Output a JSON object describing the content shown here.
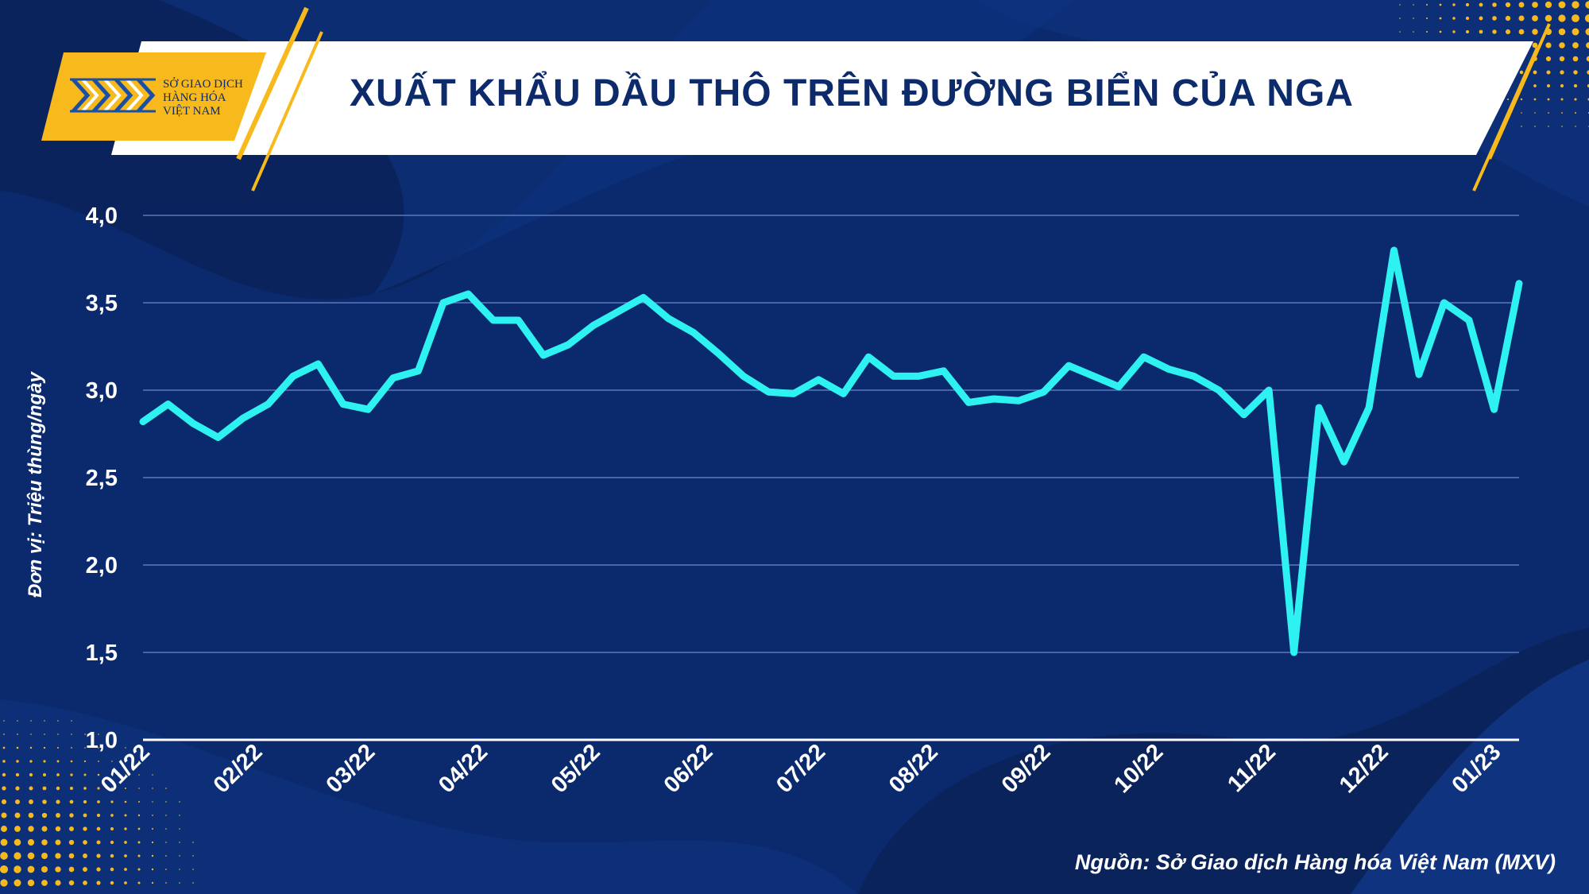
{
  "header": {
    "logo_lines": [
      "SỞ GIAO DỊCH",
      "HÀNG HÓA",
      "VIỆT NAM"
    ],
    "title": "XUẤT KHẨU DẦU THÔ TRÊN ĐƯỜNG BIỂN CỦA NGA"
  },
  "footer": {
    "source": "Nguồn: Sở Giao dịch Hàng hóa Việt Nam (MXV)"
  },
  "colors": {
    "background": "#0b2a6e",
    "line": "#2ef2f2",
    "accent": "#f7b91b",
    "title_text": "#0d2a6b"
  },
  "chart_data": {
    "type": "line",
    "title": "XUẤT KHẨU DẦU THÔ TRÊN ĐƯỜNG BIỂN CỦA NGA",
    "xlabel": "",
    "ylabel": "Đơn vị: Triệu thùng/ngày",
    "ylim": [
      1.0,
      4.0
    ],
    "yticks": [
      "4,0",
      "3,5",
      "3,0",
      "2,5",
      "2,0",
      "1,5",
      "1,0"
    ],
    "ytick_values": [
      4.0,
      3.5,
      3.0,
      2.5,
      2.0,
      1.5,
      1.0
    ],
    "grid": true,
    "legend": "none",
    "x_tick_labels": [
      "01/22",
      "02/22",
      "03/22",
      "04/22",
      "05/22",
      "06/22",
      "07/22",
      "08/22",
      "09/22",
      "10/22",
      "11/22",
      "12/22",
      "01/23"
    ],
    "x_tick_index": [
      0,
      4.5,
      9,
      13.5,
      18,
      22.5,
      27,
      31.5,
      36,
      40.5,
      45,
      49.5,
      54
    ],
    "series": [
      {
        "values": [
          2.82,
          2.92,
          2.81,
          2.73,
          2.84,
          2.92,
          3.08,
          3.15,
          2.92,
          2.89,
          3.07,
          3.11,
          3.5,
          3.55,
          3.4,
          3.4,
          3.2,
          3.26,
          3.37,
          3.45,
          3.53,
          3.41,
          3.33,
          3.21,
          3.08,
          2.99,
          2.98,
          3.06,
          2.98,
          3.19,
          3.08,
          3.08,
          3.11,
          2.93,
          2.95,
          2.94,
          2.99,
          3.14,
          3.08,
          3.02,
          3.19,
          3.12,
          3.08,
          3.0,
          2.86,
          3.0,
          1.5,
          2.9,
          2.59,
          2.9,
          3.8,
          3.09,
          3.5,
          3.4,
          2.89,
          3.61
        ]
      }
    ]
  }
}
